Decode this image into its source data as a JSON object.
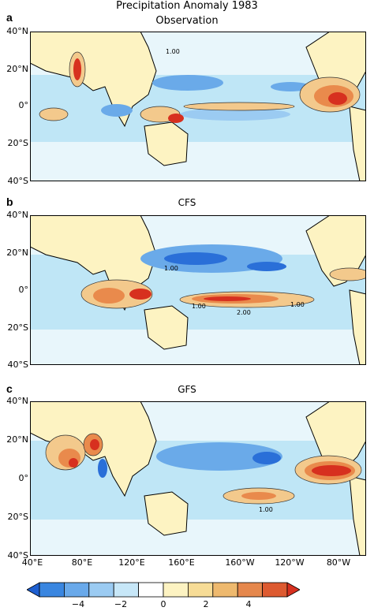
{
  "title": "Precipitation Anomaly 1983",
  "panels": [
    {
      "letter": "a",
      "title": "Observation",
      "contour_labels": [
        "1.00"
      ]
    },
    {
      "letter": "b",
      "title": "CFS",
      "contour_labels": [
        "1.00",
        "2.00",
        "1.00",
        "1.00"
      ]
    },
    {
      "letter": "c",
      "title": "GFS",
      "contour_labels": [
        "1.00"
      ]
    }
  ],
  "lat_labels": [
    "40°N",
    "20°N",
    "0°",
    "20°S",
    "40°S"
  ],
  "lon_labels": [
    "40°E",
    "80°E",
    "120°E",
    "160°E",
    "160°W",
    "120°W",
    "80°W"
  ],
  "colorbar": {
    "labels": [
      "−4",
      "−2",
      "0",
      "2",
      "4"
    ],
    "colors": [
      "#1e5fd0",
      "#3a86e0",
      "#69a9ea",
      "#9bcbf2",
      "#c7e7f8",
      "#ffffff",
      "#fdf3c2",
      "#f7dc96",
      "#eeb96e",
      "#e5874c",
      "#dd5a30",
      "#d7301f"
    ]
  },
  "colors": {
    "land_line": "#000000",
    "ocean_base": "#bfe6f6",
    "wet_strong": "#d7301f",
    "wet_mid": "#e98a4c",
    "wet_weak": "#f3c98c",
    "dry_strong": "#2a6fd8",
    "dry_mid": "#6aaae9"
  }
}
